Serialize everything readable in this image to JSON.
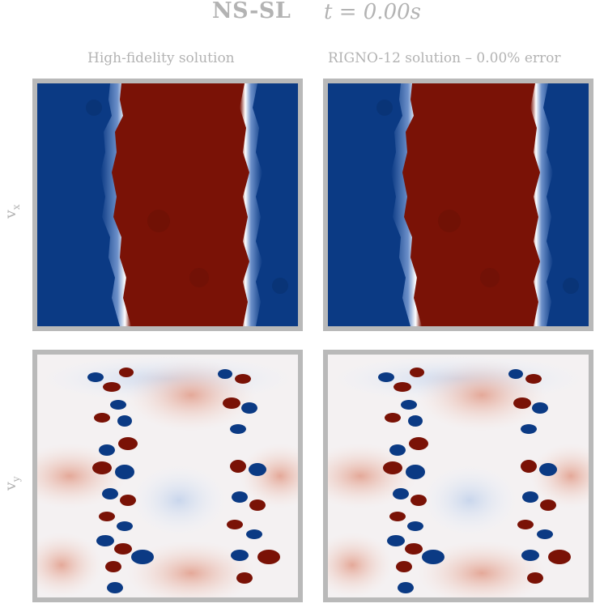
{
  "header": {
    "name": "NS-SL",
    "time": "t = 0.00s"
  },
  "columns": [
    {
      "title": "High-fidelity solution"
    },
    {
      "title": "RIGNO-12 solution – 0.00% error"
    }
  ],
  "rows": [
    {
      "label_main": "v",
      "label_sub": "x"
    },
    {
      "label_main": "v",
      "label_sub": "y"
    }
  ],
  "colors": {
    "deep_blue": "#0b3a84",
    "deep_red": "#7a1206",
    "light_red": "#e9b7ab",
    "light_blue": "#dde6f3",
    "frame": "#b9b9b9",
    "text": "#b3b3b3"
  }
}
